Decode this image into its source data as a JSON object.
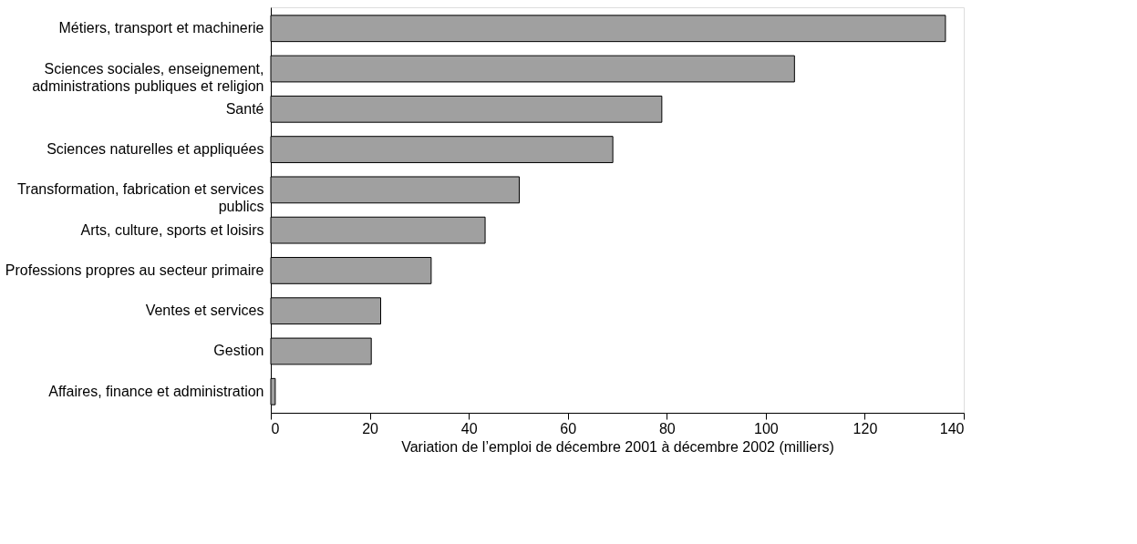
{
  "chart_data": {
    "type": "bar",
    "orientation": "horizontal",
    "xlabel": "Variation de l’emploi de décembre 2001 à décembre 2002 (milliers)",
    "categories": [
      "Métiers, transport et machinerie",
      "Sciences sociales, enseignement, administrations publiques et religion",
      "Santé",
      "Sciences naturelles et appliquées",
      "Transformation, fabrication et services publics",
      "Arts, culture, sports et loisirs",
      "Professions propres au secteur primaire",
      "Ventes et services",
      "Gestion",
      "Affaires, finance et administration"
    ],
    "values": [
      136.3,
      105.8,
      79.0,
      69.1,
      50.2,
      43.3,
      32.4,
      22.2,
      20.3,
      0.9
    ],
    "color": "#a0a0a0",
    "xlim": [
      0,
      140
    ],
    "xticks": [
      0,
      20,
      40,
      60,
      80,
      100,
      120,
      140
    ],
    "grid": false
  }
}
